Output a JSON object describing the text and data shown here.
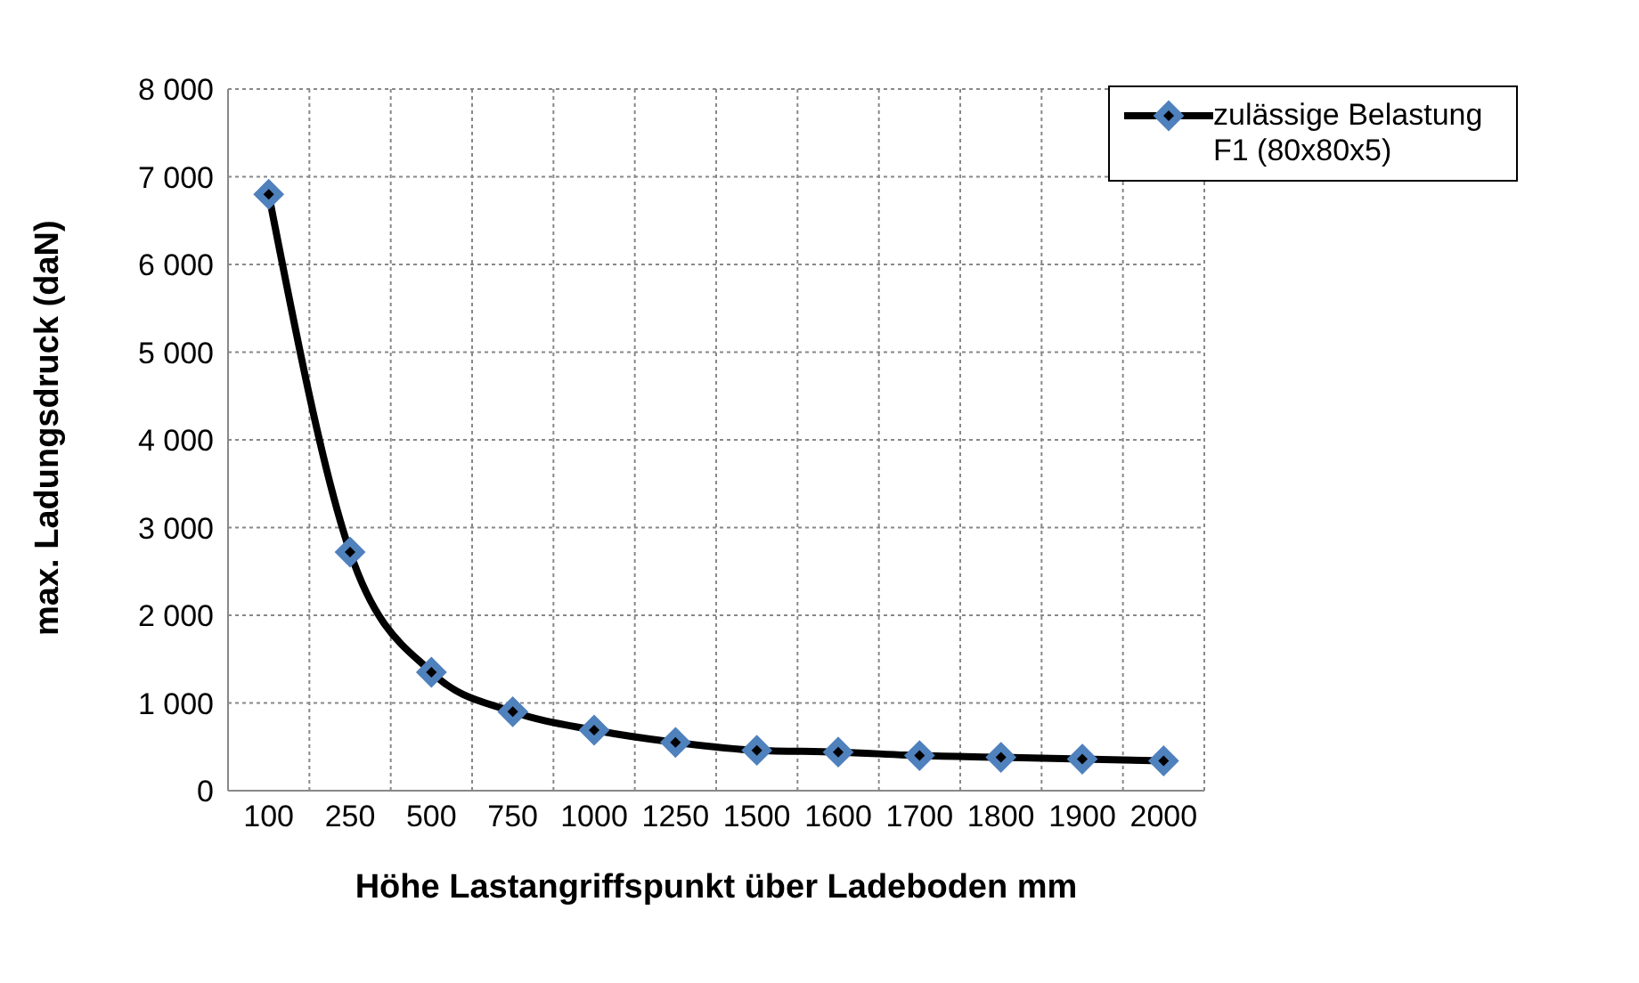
{
  "chart_data": {
    "type": "line",
    "xlabel": "Höhe Lastangriffspunkt über Ladeboden mm",
    "ylabel": "max. Ladungsdruck (daN)",
    "categories": [
      "100",
      "250",
      "500",
      "750",
      "1000",
      "1250",
      "1500",
      "1600",
      "1700",
      "1800",
      "1900",
      "2000"
    ],
    "series": [
      {
        "name": "zulässige Belastung F1 (80x80x5)",
        "color": "#000000",
        "values": [
          6800,
          2720,
          1350,
          900,
          690,
          550,
          460,
          440,
          400,
          380,
          360,
          340
        ]
      }
    ],
    "ylim": [
      0,
      8000
    ],
    "yticks": [
      {
        "value": 0,
        "label": "0"
      },
      {
        "value": 1000,
        "label": "1 000"
      },
      {
        "value": 2000,
        "label": "2 000"
      },
      {
        "value": 3000,
        "label": "3 000"
      },
      {
        "value": 4000,
        "label": "4 000"
      },
      {
        "value": 5000,
        "label": "5 000"
      },
      {
        "value": 6000,
        "label": "6 000"
      },
      {
        "value": 7000,
        "label": "7 000"
      },
      {
        "value": 8000,
        "label": "8 000"
      }
    ],
    "grid": true,
    "legend": "top right",
    "marker": "diamond",
    "line_style": "solid"
  }
}
